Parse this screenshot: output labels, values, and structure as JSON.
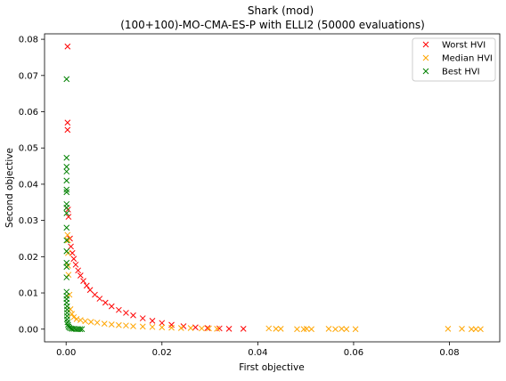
{
  "chart_data": {
    "type": "scatter",
    "title": [
      "Shark (mod)",
      "(100+100)-MO-CMA-ES-P with ELLI2 (50000 evaluations)"
    ],
    "xlabel": "First objective",
    "ylabel": "Second objective",
    "xlim": [
      -0.0045,
      0.0905
    ],
    "ylim": [
      -0.0035,
      0.0815
    ],
    "xticks": [
      0.0,
      0.02,
      0.04,
      0.06,
      0.08
    ],
    "xtick_labels": [
      "0.00",
      "0.02",
      "0.04",
      "0.06",
      "0.08"
    ],
    "yticks": [
      0.0,
      0.01,
      0.02,
      0.03,
      0.04,
      0.05,
      0.06,
      0.07,
      0.08
    ],
    "ytick_labels": [
      "0.00",
      "0.01",
      "0.02",
      "0.03",
      "0.04",
      "0.05",
      "0.06",
      "0.07",
      "0.08"
    ],
    "marker": "x",
    "legend_position": "top-right",
    "series": [
      {
        "name": "Worst HVI",
        "color": "#ff0000",
        "points": [
          [
            0.0003,
            0.078
          ],
          [
            0.0003,
            0.057
          ],
          [
            0.0003,
            0.055
          ],
          [
            0.0004,
            0.033
          ],
          [
            0.0005,
            0.031
          ],
          [
            0.0008,
            0.025
          ],
          [
            0.001,
            0.0228
          ],
          [
            0.0013,
            0.021
          ],
          [
            0.0016,
            0.0194
          ],
          [
            0.002,
            0.0178
          ],
          [
            0.0025,
            0.0162
          ],
          [
            0.003,
            0.0148
          ],
          [
            0.0036,
            0.0133
          ],
          [
            0.0043,
            0.012
          ],
          [
            0.005,
            0.0108
          ],
          [
            0.006,
            0.0095
          ],
          [
            0.007,
            0.0084
          ],
          [
            0.0082,
            0.0073
          ],
          [
            0.0095,
            0.0063
          ],
          [
            0.011,
            0.0053
          ],
          [
            0.0125,
            0.0045
          ],
          [
            0.014,
            0.0038
          ],
          [
            0.016,
            0.003
          ],
          [
            0.018,
            0.0023
          ],
          [
            0.02,
            0.0017
          ],
          [
            0.022,
            0.0012
          ],
          [
            0.0245,
            0.0008
          ],
          [
            0.027,
            0.0005
          ],
          [
            0.0295,
            0.0003
          ],
          [
            0.032,
            0.0002
          ],
          [
            0.034,
            0.0001
          ],
          [
            0.037,
            0.0001
          ]
        ]
      },
      {
        "name": "Median HVI",
        "color": "#ffa500",
        "points": [
          [
            0.0003,
            0.026
          ],
          [
            0.0004,
            0.0245
          ],
          [
            0.0004,
            0.021
          ],
          [
            0.0004,
            0.0175
          ],
          [
            0.0005,
            0.015
          ],
          [
            0.0007,
            0.0095
          ],
          [
            0.0009,
            0.0055
          ],
          [
            0.0012,
            0.0042
          ],
          [
            0.0016,
            0.0033
          ],
          [
            0.0022,
            0.0028
          ],
          [
            0.003,
            0.0025
          ],
          [
            0.004,
            0.0022
          ],
          [
            0.0052,
            0.002
          ],
          [
            0.0065,
            0.0018
          ],
          [
            0.008,
            0.0015
          ],
          [
            0.0095,
            0.0013
          ],
          [
            0.011,
            0.0011
          ],
          [
            0.0125,
            0.001
          ],
          [
            0.014,
            0.0008
          ],
          [
            0.016,
            0.0007
          ],
          [
            0.018,
            0.0006
          ],
          [
            0.02,
            0.0005
          ],
          [
            0.022,
            0.0004
          ],
          [
            0.024,
            0.0003
          ],
          [
            0.026,
            0.0003
          ],
          [
            0.0283,
            0.0002
          ],
          [
            0.0298,
            0.0002
          ],
          [
            0.0315,
            0.0001
          ],
          [
            0.0423,
            0.0002
          ],
          [
            0.0438,
            0.0001
          ],
          [
            0.0448,
            0.0001
          ],
          [
            0.0482,
            0.0
          ],
          [
            0.0496,
            0.0
          ],
          [
            0.0502,
            0.0001
          ],
          [
            0.0512,
            0.0
          ],
          [
            0.0548,
            0.0001
          ],
          [
            0.0562,
            0.0
          ],
          [
            0.0575,
            0.0001
          ],
          [
            0.0585,
            0.0
          ],
          [
            0.0604,
            0.0
          ],
          [
            0.0797,
            0.0001
          ],
          [
            0.0826,
            0.0001
          ],
          [
            0.0846,
            0.0
          ],
          [
            0.0855,
            0.0
          ],
          [
            0.0865,
            0.0
          ]
        ]
      },
      {
        "name": "Best HVI",
        "color": "#008000",
        "points": [
          [
            0.0001,
            0.069
          ],
          [
            0.0001,
            0.0473
          ],
          [
            0.0001,
            0.0448
          ],
          [
            0.0001,
            0.0435
          ],
          [
            0.0001,
            0.041
          ],
          [
            0.0001,
            0.0385
          ],
          [
            0.0001,
            0.0378
          ],
          [
            0.0001,
            0.0345
          ],
          [
            0.0001,
            0.0335
          ],
          [
            0.0001,
            0.032
          ],
          [
            0.0001,
            0.028
          ],
          [
            0.0001,
            0.0245
          ],
          [
            0.0001,
            0.0215
          ],
          [
            0.0001,
            0.0183
          ],
          [
            0.0001,
            0.0172
          ],
          [
            0.0001,
            0.0143
          ],
          [
            0.0001,
            0.0103
          ],
          [
            0.0001,
            0.0092
          ],
          [
            0.0001,
            0.0083
          ],
          [
            0.0001,
            0.0073
          ],
          [
            0.0002,
            0.0063
          ],
          [
            0.0002,
            0.0054
          ],
          [
            0.0002,
            0.0045
          ],
          [
            0.0002,
            0.0036
          ],
          [
            0.0002,
            0.0027
          ],
          [
            0.0003,
            0.0019
          ],
          [
            0.0004,
            0.0012
          ],
          [
            0.0005,
            0.0007
          ],
          [
            0.0007,
            0.0004
          ],
          [
            0.001,
            0.0002
          ],
          [
            0.0013,
            0.0001
          ],
          [
            0.0017,
            0.0001
          ],
          [
            0.0021,
            0.0
          ],
          [
            0.0025,
            0.0
          ],
          [
            0.0029,
            0.0
          ],
          [
            0.0033,
            0.0
          ]
        ]
      }
    ]
  }
}
